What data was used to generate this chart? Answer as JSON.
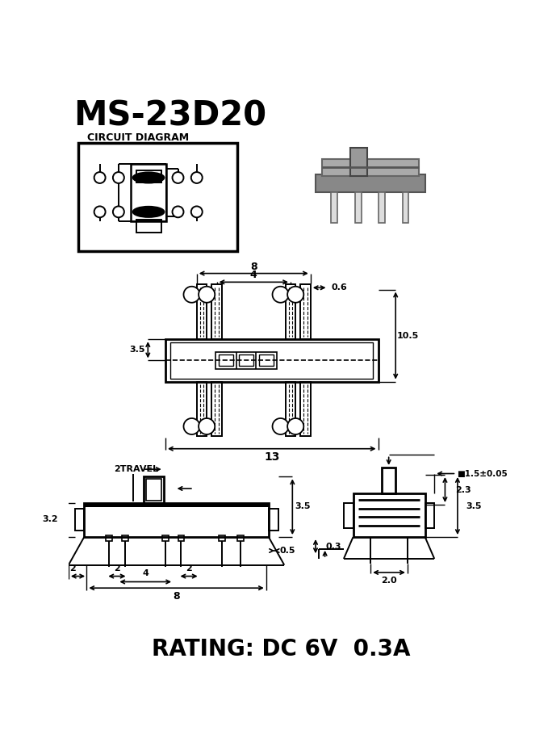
{
  "title": "MS-23D20",
  "circuit_label": "CIRCUIT DIAGRAM",
  "rating_text": "RATING: DC 6V  0.3A",
  "bg_color": "#ffffff",
  "line_color": "#000000",
  "dim_8": "8",
  "dim_4": "4",
  "dim_0_6": "0.6",
  "dim_10_5": "10.5",
  "dim_3_5_top": "3.5",
  "dim_13": "13",
  "dim_3_2": "3.2",
  "dim_2travel": "2TRAVEL",
  "dim_3_5_side": "3.5",
  "dim_0_3": "0.3",
  "dim_0_5": "0.5",
  "dim_2a": "2",
  "dim_2b": "2",
  "dim_4b": "4",
  "dim_8b": "8",
  "dim_sq": "■1.5±0.05",
  "dim_2_3": "2.3",
  "dim_3_5c": "3.5",
  "dim_2_0": "2.0"
}
